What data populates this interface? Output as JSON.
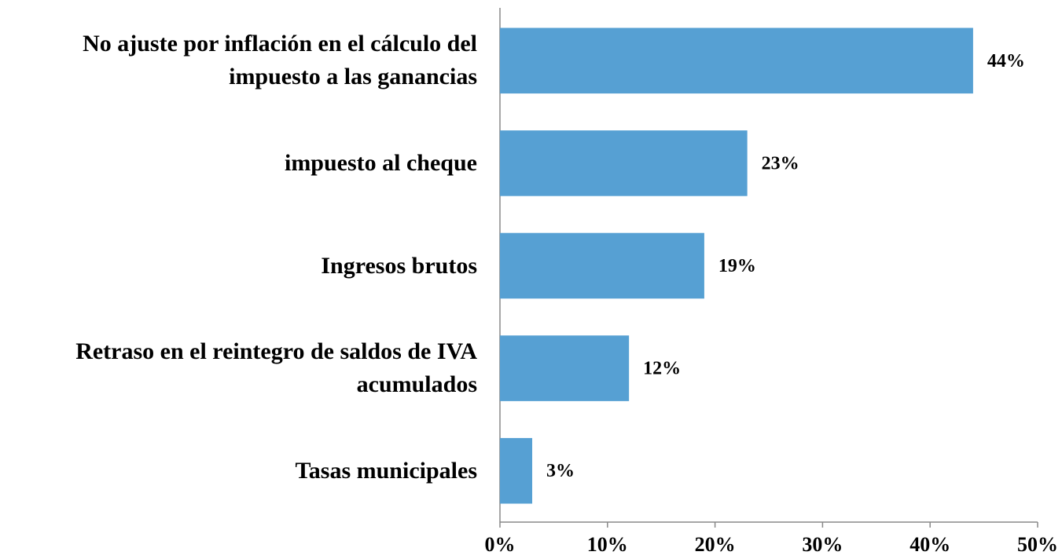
{
  "chart_data": {
    "type": "bar",
    "orientation": "horizontal",
    "categories": [
      "No ajuste por inflación en el cálculo del impuesto a las ganancias",
      "impuesto al cheque",
      "Ingresos brutos",
      "Retraso en el reintegro de saldos de IVA acumulados",
      "Tasas municipales"
    ],
    "values": [
      44,
      23,
      19,
      12,
      3
    ],
    "value_labels": [
      "44%",
      "23%",
      "19%",
      "12%",
      "3%"
    ],
    "color": "#56a0d3",
    "xlim": [
      0,
      50
    ],
    "xticks": [
      {
        "value": 0,
        "label": "0%"
      },
      {
        "value": 10,
        "label": "10%"
      },
      {
        "value": 20,
        "label": "20%"
      },
      {
        "value": 30,
        "label": "30%"
      },
      {
        "value": 40,
        "label": "40%"
      },
      {
        "value": 50,
        "label": "50%"
      }
    ],
    "grid": false
  }
}
